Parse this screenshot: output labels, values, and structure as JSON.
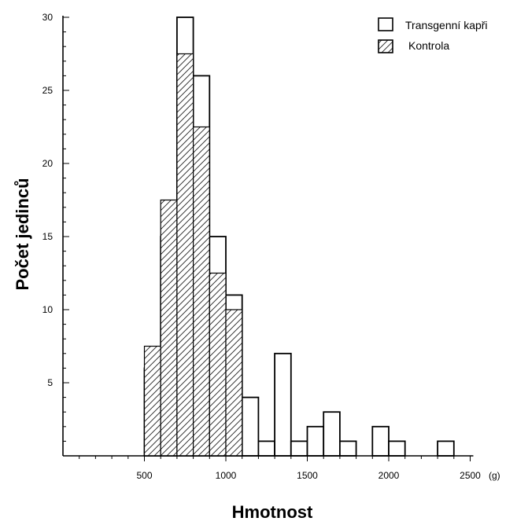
{
  "chart_data": {
    "type": "bar",
    "xlabel": "Hmotnost",
    "ylabel": "Počet jedinců",
    "x_unit": "(g)",
    "xlim": [
      0,
      2500
    ],
    "ylim": [
      0,
      30
    ],
    "x_ticks": [
      500,
      1000,
      1500,
      2000,
      2500
    ],
    "y_ticks": [
      5,
      10,
      15,
      20,
      25,
      30
    ],
    "bin_width": 100,
    "grid": false,
    "legend_position": "top-right",
    "series": [
      {
        "name": "Transgenní kapři",
        "pattern": "open",
        "bins": [
          {
            "start": 500,
            "value": 6
          },
          {
            "start": 600,
            "value": 15
          },
          {
            "start": 700,
            "value": 30
          },
          {
            "start": 800,
            "value": 26
          },
          {
            "start": 900,
            "value": 15
          },
          {
            "start": 1000,
            "value": 11
          },
          {
            "start": 1100,
            "value": 4
          },
          {
            "start": 1200,
            "value": 1
          },
          {
            "start": 1300,
            "value": 7
          },
          {
            "start": 1400,
            "value": 1
          },
          {
            "start": 1500,
            "value": 2
          },
          {
            "start": 1600,
            "value": 3
          },
          {
            "start": 1700,
            "value": 1
          },
          {
            "start": 1900,
            "value": 2
          },
          {
            "start": 2000,
            "value": 1
          },
          {
            "start": 2300,
            "value": 1
          }
        ]
      },
      {
        "name": "Kontrola",
        "pattern": "hatched",
        "bins": [
          {
            "start": 500,
            "value": 7.5
          },
          {
            "start": 600,
            "value": 17.5
          },
          {
            "start": 700,
            "value": 27.5
          },
          {
            "start": 800,
            "value": 22.5
          },
          {
            "start": 900,
            "value": 12.5
          },
          {
            "start": 1000,
            "value": 10
          }
        ]
      }
    ]
  }
}
